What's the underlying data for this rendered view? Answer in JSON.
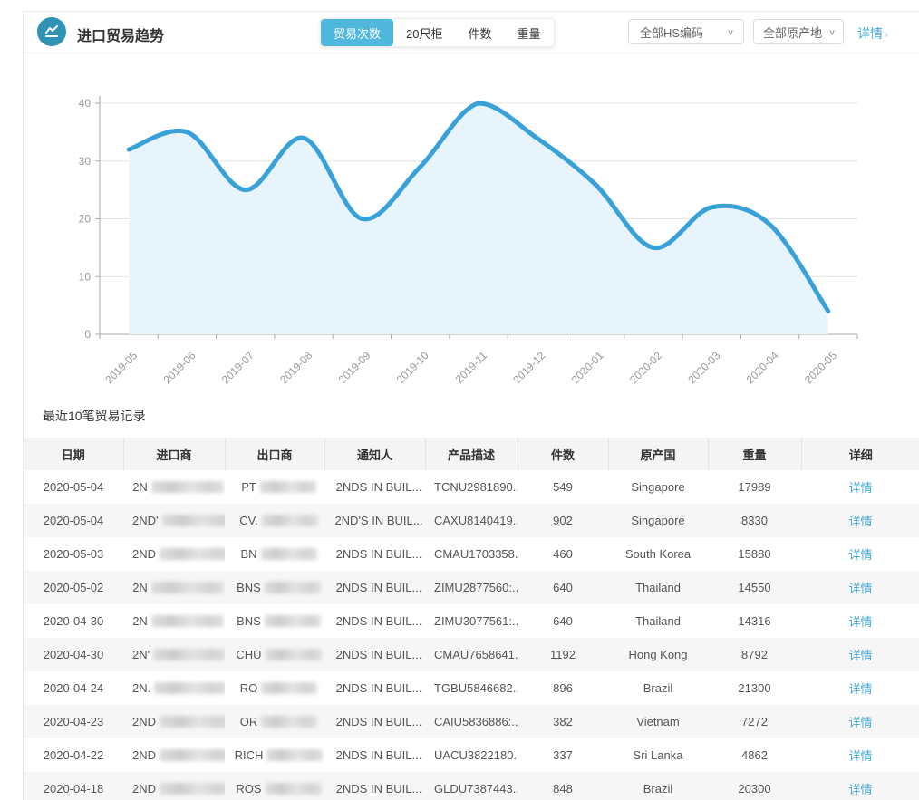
{
  "colors": {
    "accent_blue": "#44a9d5",
    "tab_active_bg": "#51b8dd",
    "icon_bg": "#2e93b4"
  },
  "header": {
    "title": "进口贸易趋势",
    "tabs": [
      {
        "label": "贸易次数",
        "active": true
      },
      {
        "label": "20尺柜",
        "active": false
      },
      {
        "label": "件数",
        "active": false
      },
      {
        "label": "重量",
        "active": false
      }
    ],
    "hs_filter": "全部HS编码",
    "origin_filter": "全部原产地",
    "detail_link": "详情",
    "detail_arrow": "›",
    "dropdown_chevron": "∨"
  },
  "chart_data": {
    "type": "area",
    "title": "",
    "x": [
      "2019-05",
      "2019-06",
      "2019-07",
      "2019-08",
      "2019-09",
      "2019-10",
      "2019-11",
      "2019-12",
      "2020-01",
      "2020-02",
      "2020-03",
      "2020-04",
      "2020-05"
    ],
    "series": [
      {
        "name": "贸易次数",
        "values": [
          32,
          35,
          25,
          34,
          20,
          29,
          40,
          34,
          26,
          15,
          22,
          19,
          4
        ]
      }
    ],
    "ylim": [
      0,
      40
    ],
    "yticks": [
      0,
      10,
      20,
      30,
      40
    ],
    "grid": true,
    "legend": "none",
    "line_color": "#38a1d8",
    "area_color": "#e8f4fb",
    "axis_color": "#aaaaaa",
    "label_color": "#999999",
    "grid_color": "#e4e4e4"
  },
  "table": {
    "title": "最近10笔贸易记录",
    "columns": [
      "日期",
      "进口商",
      "出口商",
      "通知人",
      "产品描述",
      "件数",
      "原产国",
      "重量",
      "详细"
    ],
    "detail_label": "详情",
    "rows": [
      {
        "date": "2020-05-04",
        "importer": "2N",
        "exporter": "PT",
        "notify": "2NDS IN BUIL...",
        "product": "TCNU2981890...",
        "qty": "549",
        "country": "Singapore",
        "weight": "17989"
      },
      {
        "date": "2020-05-04",
        "importer": "2ND'",
        "exporter": "CV.",
        "notify": "2ND'S IN BUIL...",
        "product": "CAXU8140419...",
        "qty": "902",
        "country": "Singapore",
        "weight": "8330"
      },
      {
        "date": "2020-05-03",
        "importer": "2ND",
        "exporter": "BN",
        "notify": "2NDS IN BUIL...",
        "product": "CMAU1703358...",
        "qty": "460",
        "country": "South Korea",
        "weight": "15880"
      },
      {
        "date": "2020-05-02",
        "importer": "2N",
        "exporter": "BNS",
        "notify": "2NDS IN BUIL...",
        "product": "ZIMU2877560:...",
        "qty": "640",
        "country": "Thailand",
        "weight": "14550"
      },
      {
        "date": "2020-04-30",
        "importer": "2N",
        "exporter": "BNS",
        "notify": "2NDS IN BUIL...",
        "product": "ZIMU3077561:...",
        "qty": "640",
        "country": "Thailand",
        "weight": "14316"
      },
      {
        "date": "2020-04-30",
        "importer": "2N'",
        "exporter": "CHU",
        "notify": "2NDS IN BUIL...",
        "product": "CMAU7658641...",
        "qty": "1192",
        "country": "Hong Kong",
        "weight": "8792"
      },
      {
        "date": "2020-04-24",
        "importer": "2N.",
        "exporter": "RO",
        "notify": "2NDS IN BUIL...",
        "product": "TGBU5846682...",
        "qty": "896",
        "country": "Brazil",
        "weight": "21300"
      },
      {
        "date": "2020-04-23",
        "importer": "2ND",
        "exporter": "OR",
        "notify": "2NDS IN BUIL...",
        "product": "CAIU5836886:...",
        "qty": "382",
        "country": "Vietnam",
        "weight": "7272"
      },
      {
        "date": "2020-04-22",
        "importer": "2ND",
        "exporter": "RICH",
        "notify": "2NDS IN BUIL...",
        "product": "UACU3822180...",
        "qty": "337",
        "country": "Sri Lanka",
        "weight": "4862"
      },
      {
        "date": "2020-04-18",
        "importer": "2ND",
        "exporter": "ROS",
        "notify": "2NDS IN BUIL...",
        "product": "GLDU7387443...",
        "qty": "848",
        "country": "Brazil",
        "weight": "20300"
      }
    ]
  }
}
